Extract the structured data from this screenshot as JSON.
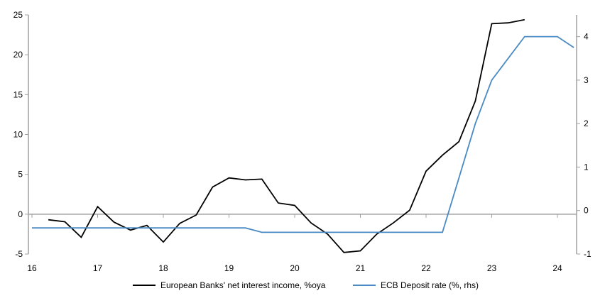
{
  "chart_data": {
    "type": "line",
    "title": "",
    "xlabel": "",
    "ylabel": "",
    "xlim": [
      16,
      24.25
    ],
    "x_ticks": [
      16,
      17,
      18,
      19,
      20,
      21,
      22,
      23,
      24
    ],
    "x_tick_labels": [
      "16",
      "17",
      "18",
      "19",
      "20",
      "21",
      "22",
      "23",
      "24"
    ],
    "ylim_left": [
      -5,
      25
    ],
    "y_left_ticks": [
      -5,
      0,
      5,
      10,
      15,
      20,
      25
    ],
    "ylim_right": [
      -1,
      4.5
    ],
    "y_right_ticks": [
      -1,
      0,
      1,
      2,
      3,
      4
    ],
    "grid": false,
    "legend_position": "bottom",
    "series": [
      {
        "name": "European Banks' net interest income, %oya",
        "axis": "left",
        "color": "#000000",
        "x": [
          16.25,
          16.5,
          16.75,
          17,
          17.25,
          17.5,
          17.75,
          18,
          18.25,
          18.5,
          18.75,
          19,
          19.25,
          19.5,
          19.75,
          20,
          20.25,
          20.5,
          20.75,
          21,
          21.25,
          21.5,
          21.75,
          22,
          22.25,
          22.5,
          22.75,
          23,
          23.25,
          23.5
        ],
        "y": [
          -0.7,
          -0.95,
          -2.9,
          0.95,
          -1.0,
          -2.0,
          -1.4,
          -3.5,
          -1.15,
          -0.1,
          3.4,
          4.55,
          4.3,
          4.4,
          1.4,
          1.1,
          -1.1,
          -2.5,
          -4.8,
          -4.6,
          -2.5,
          -1.1,
          0.5,
          5.4,
          7.4,
          9.1,
          14.2,
          23.9,
          24.0,
          24.4
        ]
      },
      {
        "name": "ECB Deposit rate (%, rhs)",
        "axis": "right",
        "color": "#4a8ac4",
        "x": [
          16,
          19.25,
          19.5,
          22.25,
          22.5,
          22.75,
          23,
          23.25,
          23.5,
          23.75,
          24,
          24.25
        ],
        "y": [
          -0.4,
          -0.4,
          -0.5,
          -0.5,
          0.75,
          2.0,
          3.0,
          3.5,
          4.0,
          4.0,
          4.0,
          3.75
        ]
      }
    ]
  }
}
